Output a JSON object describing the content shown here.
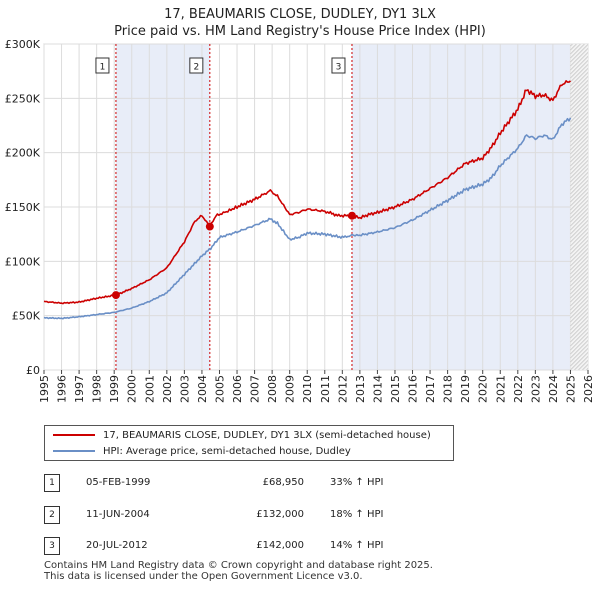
{
  "title": {
    "line1": "17, BEAUMARIS CLOSE, DUDLEY, DY1 3LX",
    "line2": "Price paid vs. HM Land Registry's House Price Index (HPI)"
  },
  "chart_data": {
    "type": "line",
    "xlim": [
      1995,
      2026
    ],
    "ylim": [
      0,
      300000
    ],
    "x_ticks": [
      "1995",
      "1996",
      "1997",
      "1998",
      "1999",
      "2000",
      "2001",
      "2002",
      "2003",
      "2004",
      "2005",
      "2006",
      "2007",
      "2008",
      "2009",
      "2010",
      "2011",
      "2012",
      "2013",
      "2014",
      "2015",
      "2016",
      "2017",
      "2018",
      "2019",
      "2020",
      "2021",
      "2022",
      "2023",
      "2024",
      "2025",
      "2026"
    ],
    "y_ticks": [
      {
        "value": 0,
        "label": "£0"
      },
      {
        "value": 50000,
        "label": "£50K"
      },
      {
        "value": 100000,
        "label": "£100K"
      },
      {
        "value": 150000,
        "label": "£150K"
      },
      {
        "value": 200000,
        "label": "£200K"
      },
      {
        "value": 250000,
        "label": "£250K"
      },
      {
        "value": 300000,
        "label": "£300K"
      }
    ],
    "grid": true,
    "series": [
      {
        "name": "17, BEAUMARIS CLOSE, DUDLEY, DY1 3LX (semi-detached house)",
        "color": "#cc0000",
        "points": [
          [
            1995.0,
            63000
          ],
          [
            1996.0,
            61500
          ],
          [
            1997.0,
            62500
          ],
          [
            1998.0,
            66000
          ],
          [
            1999.1,
            68950
          ],
          [
            2000.0,
            75000
          ],
          [
            2001.0,
            83000
          ],
          [
            2002.0,
            94000
          ],
          [
            2003.0,
            118000
          ],
          [
            2003.6,
            137000
          ],
          [
            2004.0,
            142000
          ],
          [
            2004.45,
            132000
          ],
          [
            2004.8,
            142000
          ],
          [
            2005.3,
            145000
          ],
          [
            2006.0,
            150000
          ],
          [
            2007.0,
            157000
          ],
          [
            2007.9,
            165000
          ],
          [
            2008.3,
            160000
          ],
          [
            2009.0,
            143000
          ],
          [
            2009.5,
            145000
          ],
          [
            2010.0,
            148000
          ],
          [
            2011.0,
            146000
          ],
          [
            2011.8,
            142000
          ],
          [
            2012.55,
            142000
          ],
          [
            2013.0,
            140000
          ],
          [
            2013.5,
            143000
          ],
          [
            2014.0,
            145000
          ],
          [
            2015.0,
            150000
          ],
          [
            2016.0,
            157000
          ],
          [
            2017.0,
            167000
          ],
          [
            2018.0,
            177000
          ],
          [
            2019.0,
            190000
          ],
          [
            2020.0,
            195000
          ],
          [
            2020.5,
            205000
          ],
          [
            2021.0,
            218000
          ],
          [
            2022.0,
            240000
          ],
          [
            2022.5,
            258000
          ],
          [
            2023.0,
            252000
          ],
          [
            2023.5,
            253000
          ],
          [
            2024.0,
            248000
          ],
          [
            2024.5,
            263000
          ],
          [
            2025.0,
            266000
          ]
        ]
      },
      {
        "name": "HPI: Average price, semi-detached house, Dudley",
        "color": "#6a8fc6",
        "points": [
          [
            1995.0,
            48000
          ],
          [
            1996.0,
            47500
          ],
          [
            1997.0,
            49000
          ],
          [
            1998.0,
            51000
          ],
          [
            1999.0,
            53000
          ],
          [
            2000.0,
            57000
          ],
          [
            2001.0,
            63000
          ],
          [
            2002.0,
            71000
          ],
          [
            2003.0,
            88000
          ],
          [
            2004.0,
            105000
          ],
          [
            2004.5,
            112000
          ],
          [
            2005.0,
            122000
          ],
          [
            2006.0,
            127000
          ],
          [
            2007.0,
            133000
          ],
          [
            2007.9,
            139000
          ],
          [
            2008.3,
            135000
          ],
          [
            2009.0,
            120000
          ],
          [
            2009.5,
            122000
          ],
          [
            2010.0,
            126000
          ],
          [
            2011.0,
            125000
          ],
          [
            2012.0,
            122000
          ],
          [
            2012.55,
            124000
          ],
          [
            2013.0,
            124000
          ],
          [
            2014.0,
            127000
          ],
          [
            2015.0,
            131000
          ],
          [
            2016.0,
            138000
          ],
          [
            2017.0,
            147000
          ],
          [
            2018.0,
            156000
          ],
          [
            2019.0,
            166000
          ],
          [
            2020.0,
            171000
          ],
          [
            2020.5,
            177000
          ],
          [
            2021.0,
            188000
          ],
          [
            2022.0,
            204000
          ],
          [
            2022.5,
            216000
          ],
          [
            2023.0,
            213000
          ],
          [
            2023.5,
            216000
          ],
          [
            2024.0,
            212000
          ],
          [
            2024.5,
            226000
          ],
          [
            2025.0,
            232000
          ]
        ]
      }
    ],
    "transactions": [
      {
        "label": "1",
        "year": 1999.1,
        "price": 68950
      },
      {
        "label": "2",
        "year": 2004.45,
        "price": 132000
      },
      {
        "label": "3",
        "year": 2012.55,
        "price": 142000
      }
    ],
    "future_from": 2025.0
  },
  "legend": {
    "property_label": "17, BEAUMARIS CLOSE, DUDLEY, DY1 3LX (semi-detached house)",
    "hpi_label": "HPI: Average price, semi-detached house, Dudley",
    "property_color": "#cc0000",
    "hpi_color": "#6a8fc6"
  },
  "table": [
    {
      "num": "1",
      "date": "05-FEB-1999",
      "price": "£68,950",
      "hpi": "33% ↑ HPI"
    },
    {
      "num": "2",
      "date": "11-JUN-2004",
      "price": "£132,000",
      "hpi": "18% ↑ HPI"
    },
    {
      "num": "3",
      "date": "20-JUL-2012",
      "price": "£142,000",
      "hpi": "14% ↑ HPI"
    }
  ],
  "footer": {
    "line1": "Contains HM Land Registry data © Crown copyright and database right 2025.",
    "line2": "This data is licensed under the Open Government Licence v3.0."
  }
}
